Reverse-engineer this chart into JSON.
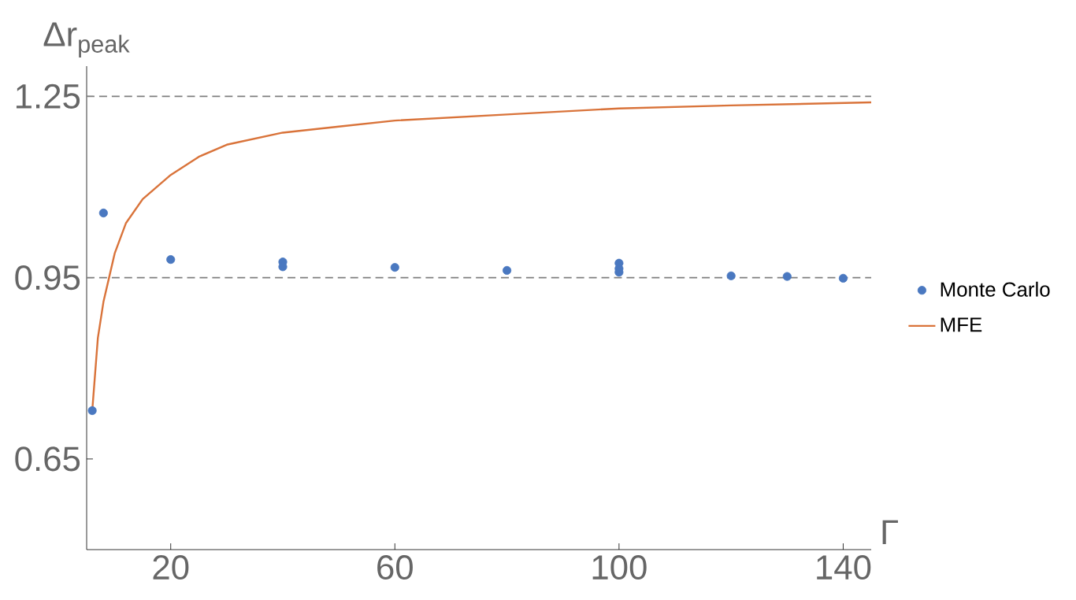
{
  "chart_data": {
    "type": "scatter",
    "xlabel": "Γ",
    "ylabel": "Δr$_{peak}$",
    "xlim": [
      5,
      145
    ],
    "ylim": [
      0.5,
      1.3
    ],
    "xticks": [
      20,
      60,
      100,
      140
    ],
    "yticks": [
      0.65,
      0.95,
      1.25
    ],
    "legend": "right",
    "marker": "circle",
    "series": [
      {
        "name": "Monte Carlo",
        "color": "#4a78c0",
        "x": [
          6,
          8,
          20,
          40,
          40,
          60,
          80,
          100,
          100,
          100,
          120,
          130,
          140
        ],
        "values": [
          0.73,
          1.057,
          0.98,
          0.976,
          0.968,
          0.967,
          0.962,
          0.974,
          0.965,
          0.959,
          0.953,
          0.952,
          0.949
        ]
      },
      {
        "name": "MFE",
        "type": "line",
        "marker": "none",
        "color": "#d9733a",
        "x": [
          6,
          7,
          8,
          9,
          10,
          12,
          15,
          20,
          25,
          30,
          40,
          50,
          60,
          80,
          100,
          120,
          145
        ],
        "values": [
          0.73,
          0.85,
          0.91,
          0.95,
          0.99,
          1.04,
          1.08,
          1.12,
          1.15,
          1.17,
          1.19,
          1.2,
          1.21,
          1.22,
          1.23,
          1.235,
          1.24
        ]
      }
    ],
    "ref_lines": [
      {
        "axis": "y",
        "value": 1.25,
        "color": "#7f7f7f",
        "line_style": "dashed"
      },
      {
        "axis": "y",
        "value": 0.95,
        "color": "#7f7f7f",
        "line_style": "dashed"
      }
    ]
  }
}
